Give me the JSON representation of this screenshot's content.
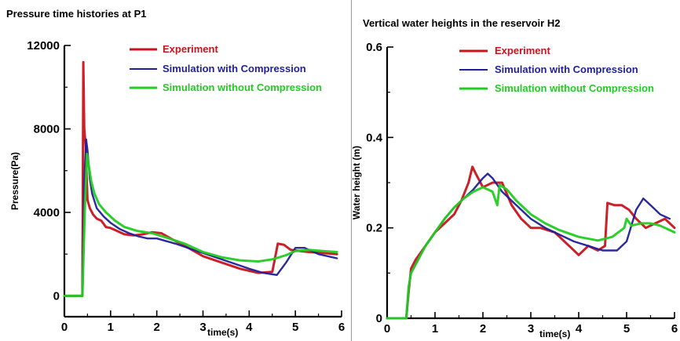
{
  "chart_data": [
    {
      "type": "line",
      "title": "Pressure time histories at P1",
      "xlabel": "time(s)",
      "ylabel": "Pressure(Pa)",
      "xlim": [
        0,
        6
      ],
      "ylim": [
        -1000,
        12000
      ],
      "x_ticks": [
        "0",
        "1",
        "2",
        "3",
        "4",
        "5",
        "6"
      ],
      "y_ticks": [
        "0",
        "4000",
        "8000",
        "12000"
      ],
      "legend_position": "top-right",
      "grid": false,
      "series": [
        {
          "name": "Experiment",
          "color": "#c8141c",
          "x": [
            0,
            0.39,
            0.41,
            0.43,
            0.46,
            0.5,
            0.55,
            0.62,
            0.7,
            0.8,
            0.9,
            1.0,
            1.1,
            1.2,
            1.3,
            1.5,
            1.7,
            1.9,
            2.1,
            2.3,
            2.6,
            3.0,
            3.4,
            3.8,
            4.2,
            4.5,
            4.62,
            4.75,
            4.9,
            5.1,
            5.3,
            5.6,
            5.9
          ],
          "y": [
            0,
            0,
            11200,
            8000,
            7200,
            4600,
            4200,
            3900,
            3700,
            3600,
            3300,
            3250,
            3150,
            3050,
            2950,
            2900,
            2950,
            3050,
            3000,
            2750,
            2400,
            1900,
            1600,
            1300,
            1100,
            1150,
            2500,
            2450,
            2200,
            2150,
            2100,
            2050,
            2000
          ]
        },
        {
          "name": "Simulation with Compression",
          "color": "#1f1f99",
          "x": [
            0,
            0.39,
            0.43,
            0.47,
            0.5,
            0.55,
            0.6,
            0.7,
            0.85,
            1.0,
            1.2,
            1.4,
            1.6,
            1.8,
            2.0,
            2.4,
            2.8,
            3.2,
            3.6,
            4.0,
            4.3,
            4.6,
            4.8,
            5.0,
            5.2,
            5.5,
            5.9
          ],
          "y": [
            0,
            0,
            5500,
            7500,
            7000,
            5600,
            4900,
            4200,
            3800,
            3500,
            3200,
            3000,
            2850,
            2750,
            2750,
            2500,
            2200,
            1900,
            1600,
            1300,
            1100,
            1000,
            1600,
            2300,
            2300,
            2000,
            1800
          ]
        },
        {
          "name": "Simulation without Compression",
          "color": "#22cc22",
          "x": [
            0,
            0.39,
            0.44,
            0.49,
            0.53,
            0.58,
            0.65,
            0.75,
            0.9,
            1.1,
            1.3,
            1.6,
            1.9,
            2.2,
            2.6,
            3.0,
            3.4,
            3.8,
            4.2,
            4.5,
            4.8,
            5.0,
            5.3,
            5.6,
            5.9
          ],
          "y": [
            0,
            0,
            4000,
            6800,
            6200,
            5500,
            4900,
            4400,
            4000,
            3600,
            3300,
            3100,
            3000,
            2800,
            2500,
            2100,
            1850,
            1700,
            1650,
            1750,
            1950,
            2150,
            2200,
            2150,
            2100
          ]
        }
      ]
    },
    {
      "type": "line",
      "title": "Vertical water heights in the reservoir H2",
      "xlabel": "time(s)",
      "ylabel": "Water height (m)",
      "xlim": [
        0,
        6
      ],
      "ylim": [
        0,
        0.6
      ],
      "x_ticks": [
        "0",
        "1",
        "2",
        "3",
        "4",
        "5",
        "6"
      ],
      "y_ticks": [
        "0",
        "0.2",
        "0.4",
        "0.6"
      ],
      "legend_position": "top-right",
      "grid": false,
      "series": [
        {
          "name": "Experiment",
          "color": "#c8141c",
          "x": [
            0,
            0.4,
            0.45,
            0.5,
            0.6,
            0.8,
            1.0,
            1.2,
            1.4,
            1.55,
            1.7,
            1.78,
            1.85,
            2.0,
            2.2,
            2.4,
            2.6,
            2.8,
            3.0,
            3.2,
            3.5,
            3.8,
            4.0,
            4.2,
            4.4,
            4.55,
            4.6,
            4.75,
            4.9,
            5.05,
            5.2,
            5.4,
            5.6,
            5.8,
            6.0
          ],
          "y": [
            0,
            0,
            0.06,
            0.11,
            0.13,
            0.16,
            0.19,
            0.21,
            0.23,
            0.26,
            0.3,
            0.335,
            0.32,
            0.29,
            0.3,
            0.3,
            0.25,
            0.22,
            0.2,
            0.2,
            0.19,
            0.16,
            0.14,
            0.16,
            0.15,
            0.16,
            0.255,
            0.25,
            0.25,
            0.24,
            0.22,
            0.2,
            0.21,
            0.22,
            0.2
          ]
        },
        {
          "name": "Simulation with Compression",
          "color": "#1f1f99",
          "x": [
            0,
            0.4,
            0.45,
            0.5,
            0.6,
            0.8,
            1.0,
            1.2,
            1.4,
            1.6,
            1.8,
            2.0,
            2.1,
            2.2,
            2.4,
            2.6,
            2.8,
            3.0,
            3.3,
            3.6,
            3.9,
            4.2,
            4.5,
            4.8,
            5.0,
            5.2,
            5.35,
            5.5,
            5.7,
            5.9
          ],
          "y": [
            0,
            0,
            0.07,
            0.1,
            0.12,
            0.16,
            0.19,
            0.22,
            0.245,
            0.265,
            0.285,
            0.31,
            0.32,
            0.31,
            0.28,
            0.26,
            0.24,
            0.22,
            0.2,
            0.185,
            0.17,
            0.16,
            0.15,
            0.15,
            0.17,
            0.24,
            0.265,
            0.25,
            0.23,
            0.22
          ]
        },
        {
          "name": "Simulation without Compression",
          "color": "#22cc22",
          "x": [
            0,
            0.4,
            0.45,
            0.5,
            0.6,
            0.8,
            1.0,
            1.2,
            1.4,
            1.6,
            1.8,
            2.0,
            2.2,
            2.3,
            2.35,
            2.5,
            2.7,
            3.0,
            3.3,
            3.6,
            4.0,
            4.4,
            4.7,
            4.95,
            5.0,
            5.1,
            5.3,
            5.5,
            5.7,
            6.0
          ],
          "y": [
            0,
            0,
            0.07,
            0.1,
            0.12,
            0.16,
            0.19,
            0.22,
            0.245,
            0.265,
            0.28,
            0.29,
            0.28,
            0.25,
            0.295,
            0.285,
            0.26,
            0.23,
            0.21,
            0.195,
            0.18,
            0.172,
            0.18,
            0.2,
            0.22,
            0.205,
            0.21,
            0.21,
            0.205,
            0.19
          ]
        }
      ]
    }
  ]
}
